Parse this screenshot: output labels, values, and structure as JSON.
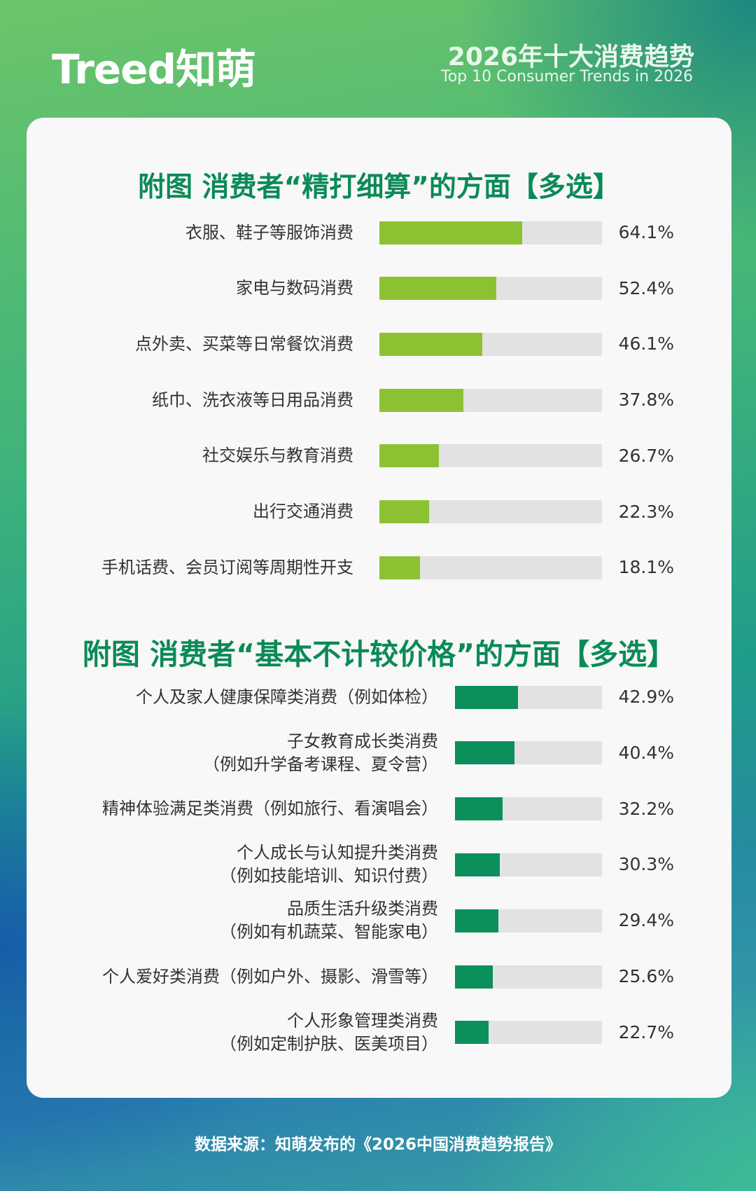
{
  "header": {
    "logo": "Treed知萌",
    "title": "2026年十大消费趋势",
    "subtitle": "Top 10 Consumer Trends in 2026"
  },
  "chart_data": [
    {
      "type": "bar",
      "orientation": "horizontal",
      "title": "附图 消费者“精打细算”的方面【多选】",
      "categories": [
        "衣服、鞋子等服饰消费",
        "家电与数码消费",
        "点外卖、买菜等日常餐饮消费",
        "纸巾、洗衣液等日用品消费",
        "社交娱乐与教育消费",
        "出行交通消费",
        "手机话费、会员订阅等周期性开支"
      ],
      "values": [
        64.1,
        52.4,
        46.1,
        37.8,
        26.7,
        22.3,
        18.1
      ],
      "value_labels": [
        "64.1%",
        "52.4%",
        "46.1%",
        "37.8%",
        "26.7%",
        "22.3%",
        "18.1%"
      ],
      "xlim": [
        0,
        100
      ],
      "color": "#8cc232",
      "track_color": "#e2e2e2"
    },
    {
      "type": "bar",
      "orientation": "horizontal",
      "title": "附图  消费者“基本不计较价格”的方面【多选】",
      "categories": [
        "个人及家人健康保障类消费（例如体检）",
        "子女教育成长类消费\n（例如升学备考课程、夏令营）",
        "精神体验满足类消费（例如旅行、看演唱会）",
        "个人成长与认知提升类消费\n（例如技能培训、知识付费）",
        "品质生活升级类消费\n（例如有机蔬菜、智能家电）",
        "个人爱好类消费（例如户外、摄影、滑雪等）",
        "个人形象管理类消费\n（例如定制护肤、医美项目）"
      ],
      "values": [
        42.9,
        40.4,
        32.2,
        30.3,
        29.4,
        25.6,
        22.7
      ],
      "value_labels": [
        "42.9%",
        "40.4%",
        "32.2%",
        "30.3%",
        "29.4%",
        "25.6%",
        "22.7%"
      ],
      "xlim": [
        0,
        100
      ],
      "color": "#0b8f5b",
      "track_color": "#e2e2e2"
    }
  ],
  "footer": {
    "source": "数据来源：知萌发布的《2026中国消费趋势报告》"
  }
}
